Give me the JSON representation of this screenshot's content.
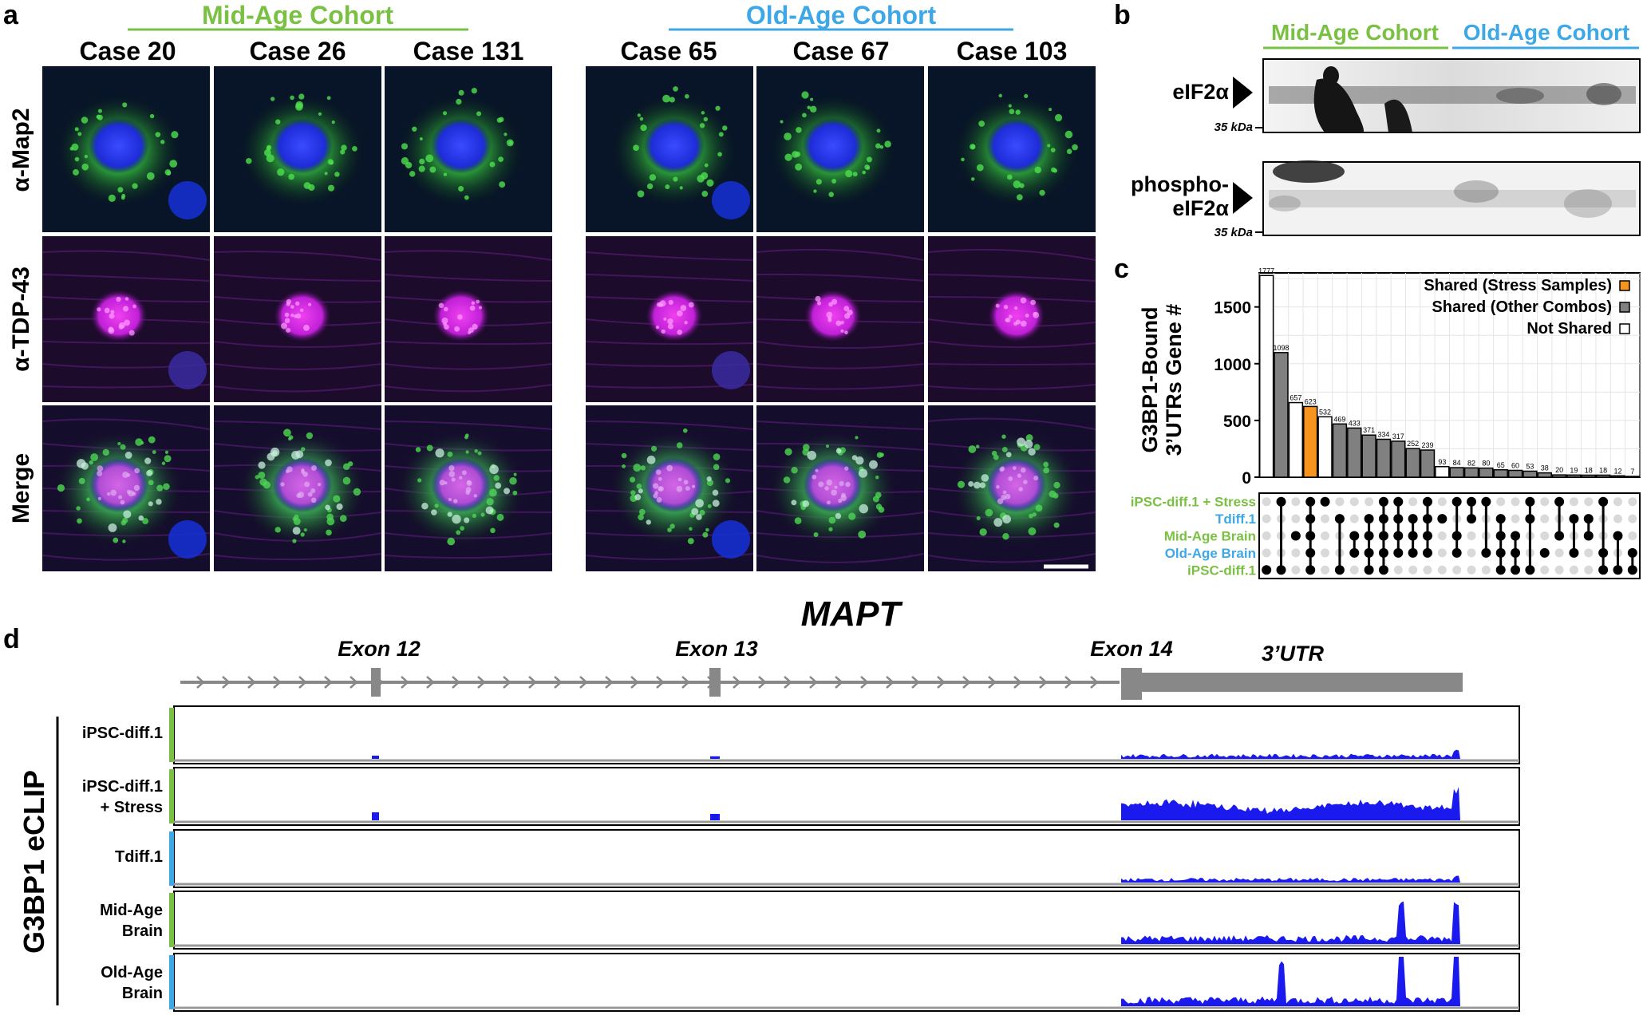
{
  "panels": {
    "a": "a",
    "b": "b",
    "c": "c",
    "d": "d"
  },
  "colors": {
    "mid_age": "#7ac143",
    "old_age": "#3ea8e6",
    "stress": "#f7941d",
    "other": "#808080",
    "not_shared": "#ffffff",
    "track": "#1a1aee",
    "gene": "#888888"
  },
  "panel_a": {
    "mid_cohort_label": "Mid-Age Cohort",
    "old_cohort_label": "Old-Age Cohort",
    "mid_cases": [
      "Case 20",
      "Case 26",
      "Case 131"
    ],
    "old_cases": [
      "Case 65",
      "Case 67",
      "Case 103"
    ],
    "rows": [
      "α-Map2",
      "α-TDP-43",
      "Merge"
    ]
  },
  "panel_b": {
    "mid_label": "Mid-Age Cohort",
    "old_label": "Old-Age Cohort",
    "blot1_label": "eIF2α",
    "blot2_label_line1": "phospho-",
    "blot2_label_line2": "eIF2α",
    "kda1": "35 kDa",
    "kda2": "35 kDa"
  },
  "chart_data": {
    "type": "bar",
    "ylabel_line1": "G3BP1-Bound",
    "ylabel_line2": "3’UTRs Gene #",
    "yticks": [
      "0",
      "500",
      "1000",
      "1500"
    ],
    "ylim": [
      0,
      1800
    ],
    "values": [
      1777,
      1098,
      657,
      623,
      532,
      469,
      433,
      371,
      334,
      317,
      252,
      239,
      93,
      84,
      82,
      80,
      65,
      60,
      53,
      38,
      20,
      19,
      18,
      18,
      12,
      7
    ],
    "categories_kind": [
      "not",
      "other",
      "not",
      "stress",
      "not",
      "other",
      "other",
      "other",
      "other",
      "other",
      "other",
      "other",
      "not",
      "other",
      "other",
      "other",
      "other",
      "other",
      "other",
      "other",
      "other",
      "other",
      "other",
      "other",
      "other",
      "other"
    ],
    "legend": [
      "Shared (Stress Samples)",
      "Shared (Other Combos)",
      "Not Shared"
    ],
    "sets": [
      "iPSC-diff.1 + Stress",
      "Tdiff.1",
      "Mid-Age Brain",
      "Old-Age Brain",
      "iPSC-diff.1"
    ],
    "memberships": [
      [
        4
      ],
      [
        0,
        4
      ],
      [
        2
      ],
      [
        1,
        2,
        3,
        0,
        4
      ],
      [
        0
      ],
      [
        1,
        4
      ],
      [
        2,
        3
      ],
      [
        1,
        2,
        3,
        4
      ],
      [
        0,
        1,
        2,
        3,
        4
      ],
      [
        0,
        1,
        2,
        3
      ],
      [
        1,
        2,
        3
      ],
      [
        0,
        1,
        2,
        3
      ],
      [
        1
      ],
      [
        0,
        2,
        3
      ],
      [
        0,
        1
      ],
      [
        0,
        3
      ],
      [
        1,
        2,
        3,
        4
      ],
      [
        2,
        3,
        4
      ],
      [
        0,
        1,
        4
      ],
      [
        3
      ],
      [
        0,
        2
      ],
      [
        1,
        3
      ],
      [
        1,
        2
      ],
      [
        0,
        3,
        4
      ],
      [
        2,
        4
      ],
      [
        3,
        4
      ]
    ]
  },
  "panel_d": {
    "gene": "MAPT",
    "exons": [
      "Exon 12",
      "Exon 13",
      "Exon 14"
    ],
    "utr": "3’UTR",
    "group_label": "G3BP1 eCLIP",
    "tracks": [
      {
        "label1": "iPSC-diff.1",
        "label2": ""
      },
      {
        "label1": "iPSC-diff.1",
        "label2": "+ Stress"
      },
      {
        "label1": "Tdiff.1",
        "label2": ""
      },
      {
        "label1": "Mid-Age",
        "label2": "Brain"
      },
      {
        "label1": "Old-Age",
        "label2": "Brain"
      }
    ]
  }
}
